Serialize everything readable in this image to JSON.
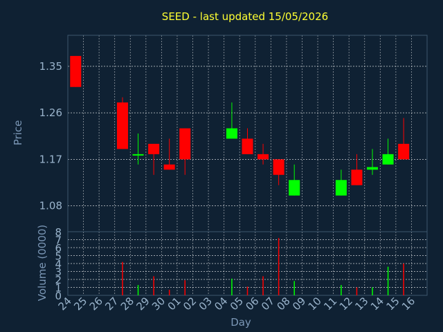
{
  "chart_data": [
    {
      "type": "candlestick",
      "title": "SEED - last updated 15/05/2026",
      "ylabel": "Price",
      "ylim": [
        1.03,
        1.41
      ],
      "yticks": [
        "1.35",
        "1.26",
        "1.17",
        "1.08"
      ],
      "grid": true,
      "up_color": "#00ff00",
      "down_color": "#ff0000",
      "categories": [
        "24",
        "25",
        "26",
        "27",
        "28",
        "29",
        "30",
        "01",
        "02",
        "03",
        "04",
        "05",
        "06",
        "07",
        "08",
        "09",
        "10",
        "11",
        "12",
        "13",
        "14",
        "15",
        "16"
      ],
      "candles": [
        {
          "x": "24",
          "open": 1.37,
          "high": 1.37,
          "low": 1.31,
          "close": 1.31
        },
        {
          "x": "27",
          "open": 1.28,
          "high": 1.29,
          "low": 1.19,
          "close": 1.19
        },
        {
          "x": "28",
          "open": 1.18,
          "high": 1.22,
          "low": 1.16,
          "close": 1.18
        },
        {
          "x": "29",
          "open": 1.2,
          "high": 1.2,
          "low": 1.14,
          "close": 1.18
        },
        {
          "x": "30",
          "open": 1.16,
          "high": 1.21,
          "low": 1.15,
          "close": 1.15
        },
        {
          "x": "01",
          "open": 1.23,
          "high": 1.23,
          "low": 1.14,
          "close": 1.17
        },
        {
          "x": "04",
          "open": 1.21,
          "high": 1.28,
          "low": 1.21,
          "close": 1.23
        },
        {
          "x": "05",
          "open": 1.21,
          "high": 1.23,
          "low": 1.18,
          "close": 1.18
        },
        {
          "x": "06",
          "open": 1.18,
          "high": 1.2,
          "low": 1.16,
          "close": 1.17
        },
        {
          "x": "07",
          "open": 1.17,
          "high": 1.17,
          "low": 1.12,
          "close": 1.14
        },
        {
          "x": "08",
          "open": 1.1,
          "high": 1.16,
          "low": 1.1,
          "close": 1.13
        },
        {
          "x": "11",
          "open": 1.1,
          "high": 1.15,
          "low": 1.1,
          "close": 1.13
        },
        {
          "x": "12",
          "open": 1.15,
          "high": 1.18,
          "low": 1.12,
          "close": 1.12
        },
        {
          "x": "13",
          "open": 1.15,
          "high": 1.19,
          "low": 1.14,
          "close": 1.155
        },
        {
          "x": "14",
          "open": 1.16,
          "high": 1.21,
          "low": 1.16,
          "close": 1.18
        },
        {
          "x": "15",
          "open": 1.2,
          "high": 1.25,
          "low": 1.17,
          "close": 1.17
        }
      ]
    },
    {
      "type": "bar",
      "ylabel": "Volume (0000)",
      "xlabel": "Day",
      "ylim": [
        0,
        8
      ],
      "yticks": [
        "0",
        "1",
        "2",
        "3",
        "4",
        "5",
        "6",
        "7",
        "8"
      ],
      "grid": true,
      "bars": [
        {
          "x": "27",
          "value": 4.2,
          "direction": "down"
        },
        {
          "x": "28",
          "value": 1.3,
          "direction": "up"
        },
        {
          "x": "29",
          "value": 2.4,
          "direction": "down"
        },
        {
          "x": "30",
          "value": 0.7,
          "direction": "down"
        },
        {
          "x": "01",
          "value": 1.9,
          "direction": "down"
        },
        {
          "x": "04",
          "value": 2.1,
          "direction": "up"
        },
        {
          "x": "05",
          "value": 1.1,
          "direction": "down"
        },
        {
          "x": "06",
          "value": 2.4,
          "direction": "down"
        },
        {
          "x": "07",
          "value": 7.2,
          "direction": "down"
        },
        {
          "x": "08",
          "value": 1.8,
          "direction": "up"
        },
        {
          "x": "11",
          "value": 1.3,
          "direction": "up"
        },
        {
          "x": "12",
          "value": 1.0,
          "direction": "down"
        },
        {
          "x": "13",
          "value": 1.0,
          "direction": "up"
        },
        {
          "x": "14",
          "value": 3.6,
          "direction": "up"
        },
        {
          "x": "15",
          "value": 4.0,
          "direction": "down"
        }
      ]
    }
  ]
}
